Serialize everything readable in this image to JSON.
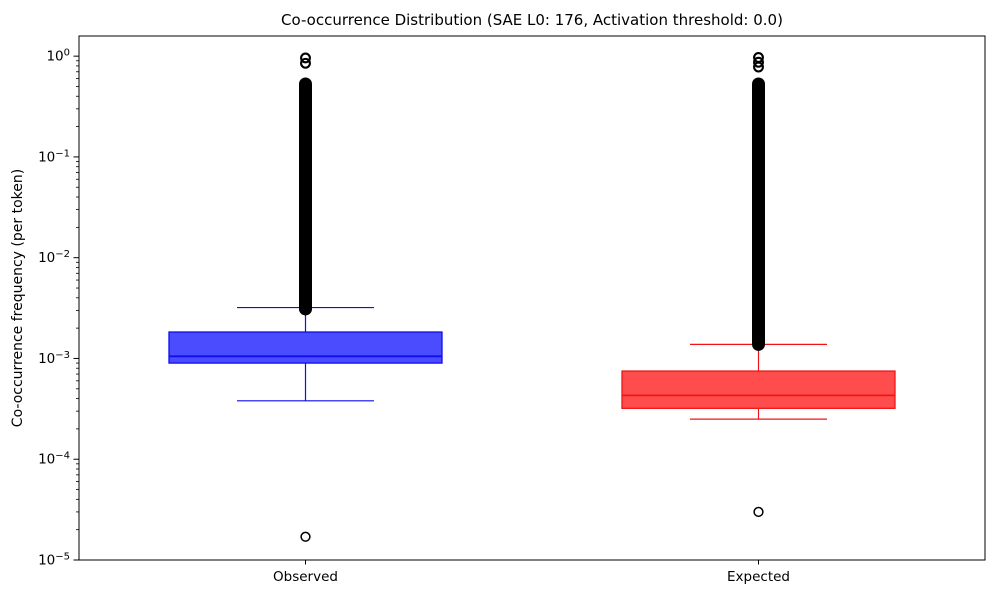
{
  "figure": {
    "background": "#ffffff"
  },
  "chart_data": {
    "type": "boxplot",
    "title": "Co-occurrence Distribution (SAE L0: 176, Activation threshold: 0.0)",
    "ylabel": "Co-occurrence frequency (per token)",
    "xlabel": "",
    "yscale": "log",
    "ylim": [
      1e-05,
      1.5849
    ],
    "grid": false,
    "legend": "none",
    "categories": [
      "Observed",
      "Expected"
    ],
    "yticks": [
      {
        "value": 1,
        "base": "10",
        "exponent": "0"
      },
      {
        "value": 0.1,
        "base": "10",
        "exponent": "−1"
      },
      {
        "value": 0.01,
        "base": "10",
        "exponent": "−2"
      },
      {
        "value": 0.001,
        "base": "10",
        "exponent": "−3"
      },
      {
        "value": 0.0001,
        "base": "10",
        "exponent": "−4"
      },
      {
        "value": 1e-05,
        "base": "10",
        "exponent": "−5"
      }
    ],
    "series": [
      {
        "name": "Observed",
        "edge_color": "#0d0df0",
        "fill_color": "#4c4cff",
        "whisker_low": 0.00038,
        "q1": 0.0009,
        "median": 0.00105,
        "q3": 0.00183,
        "whisker_high": 0.0032,
        "outlier_band_high": {
          "min": 0.0031,
          "max": 0.53,
          "appearance": "solid column of overlapping circle markers"
        },
        "outliers_above": [
          0.96,
          0.85
        ],
        "outliers_below": [
          1.7e-05
        ]
      },
      {
        "name": "Expected",
        "edge_color": "#f01414",
        "fill_color": "#ff4d4d",
        "whisker_low": 0.00025,
        "q1": 0.00032,
        "median": 0.00043,
        "q3": 0.00075,
        "whisker_high": 0.00138,
        "outlier_band_high": {
          "min": 0.00138,
          "max": 0.53,
          "appearance": "solid column of overlapping circle markers"
        },
        "outliers_above": [
          0.97,
          0.87,
          0.78
        ],
        "outliers_below": [
          3e-05
        ]
      }
    ],
    "outlier_marker_color": "#000000"
  }
}
